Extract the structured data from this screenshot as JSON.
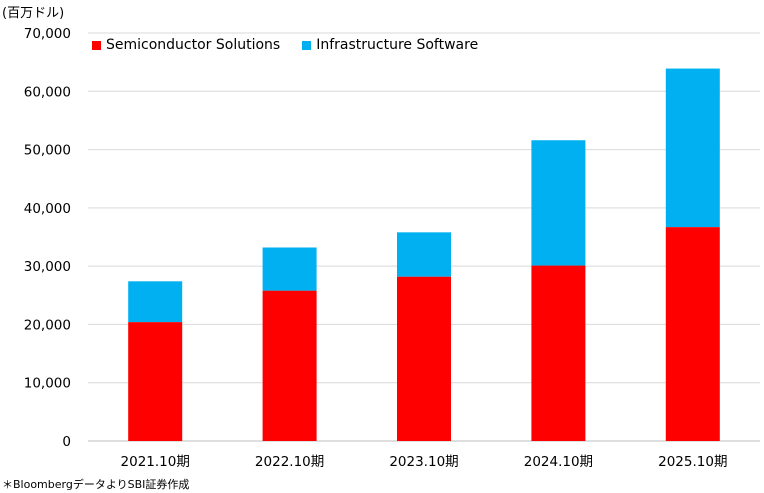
{
  "chart_data": {
    "type": "bar",
    "stacked": true,
    "unit_label": "(百万ドル)",
    "categories": [
      "2021.10期",
      "2022.10期",
      "2023.10期",
      "2024.10期",
      "2025.10期"
    ],
    "series": [
      {
        "name": "Semiconductor Solutions",
        "color": "#FF0000",
        "values": [
          20400,
          25800,
          28200,
          30100,
          36700
        ]
      },
      {
        "name": "Infrastructure Software",
        "color": "#00B0F0",
        "values": [
          7000,
          7400,
          7600,
          21500,
          27200
        ]
      }
    ],
    "yticks": [
      "0",
      "10,000",
      "20,000",
      "30,000",
      "40,000",
      "50,000",
      "60,000",
      "70,000"
    ],
    "ylim": [
      0,
      70000
    ],
    "grid": true,
    "legend_position": "top-left",
    "footnote": "＊BloombergデータよりSBI証券作成"
  }
}
